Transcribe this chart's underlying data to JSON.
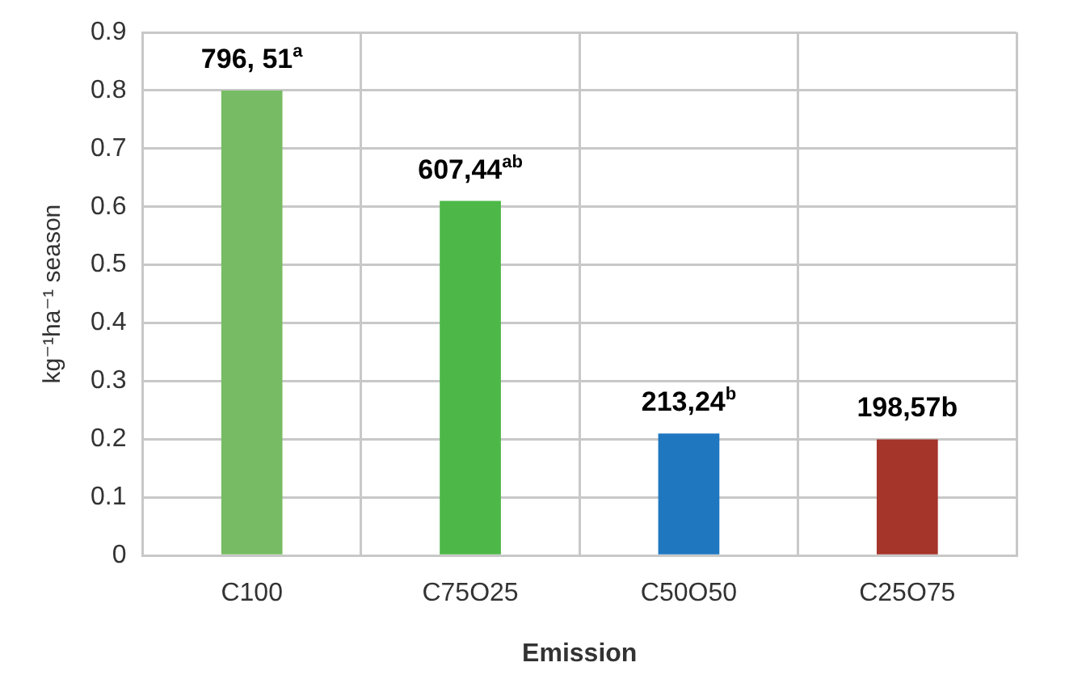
{
  "chart_data": {
    "type": "bar",
    "xlabel": "Emission",
    "ylabel": "kg⁻¹ha⁻¹ season",
    "categories": [
      "C100",
      "C75O25",
      "C50O50",
      "C25O75"
    ],
    "values": [
      0.8,
      0.61,
      0.21,
      0.2
    ],
    "colors": [
      "#77bc65",
      "#4db848",
      "#1f77c0",
      "#a5342a"
    ],
    "annotations": [
      {
        "text": "796, 51$^{a}$",
        "x": "C100",
        "y": 0.8
      },
      {
        "text": "607,44$^{ab}$",
        "x": "C75O25",
        "y": 0.61
      },
      {
        "text": "213,24$^{b}$",
        "x": "C50O50",
        "y": 0.21
      },
      {
        "text": "198,57b",
        "x": "C25O75",
        "y": 0.2
      }
    ],
    "ylim": [
      0,
      0.9
    ],
    "yticks": [
      0,
      0.1,
      0.2,
      0.3,
      0.4,
      0.5,
      0.6,
      0.7,
      0.8,
      0.9
    ],
    "grid": true,
    "legend": false
  }
}
